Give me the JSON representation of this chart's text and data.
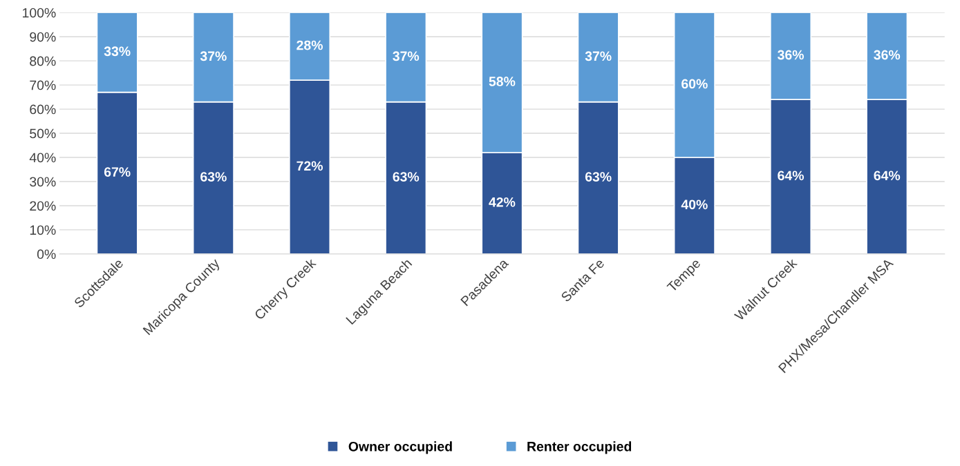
{
  "chart_data": {
    "type": "bar",
    "stacked": true,
    "categories": [
      "Scottsdale",
      "Maricopa County",
      "Cherry Creek",
      "Laguna Beach",
      "Pasadena",
      "Santa Fe",
      "Tempe",
      "Walnut Creek",
      "PHX/Mesa/Chandler MSA"
    ],
    "series": [
      {
        "name": "Owner occupied",
        "color": "#2f5597",
        "values": [
          67,
          63,
          72,
          63,
          42,
          63,
          40,
          64,
          64
        ],
        "value_labels": [
          "67%",
          "63%",
          "72%",
          "63%",
          "42%",
          "63%",
          "40%",
          "64%",
          "64%"
        ]
      },
      {
        "name": "Renter occupied",
        "color": "#5b9bd5",
        "values": [
          33,
          37,
          28,
          37,
          58,
          37,
          60,
          36,
          36
        ],
        "value_labels": [
          "33%",
          "37%",
          "28%",
          "37%",
          "58%",
          "37%",
          "60%",
          "36%",
          "36%"
        ]
      }
    ],
    "ylim": [
      0,
      100
    ],
    "yticks": [
      {
        "value": 0,
        "label": "0%"
      },
      {
        "value": 10,
        "label": "10%"
      },
      {
        "value": 20,
        "label": "20%"
      },
      {
        "value": 30,
        "label": "30%"
      },
      {
        "value": 40,
        "label": "40%"
      },
      {
        "value": 50,
        "label": "50%"
      },
      {
        "value": 60,
        "label": "60%"
      },
      {
        "value": 70,
        "label": "70%"
      },
      {
        "value": 80,
        "label": "80%"
      },
      {
        "value": 90,
        "label": "90%"
      },
      {
        "value": 100,
        "label": "100%"
      }
    ],
    "grid": "y",
    "legend": "bottom"
  }
}
